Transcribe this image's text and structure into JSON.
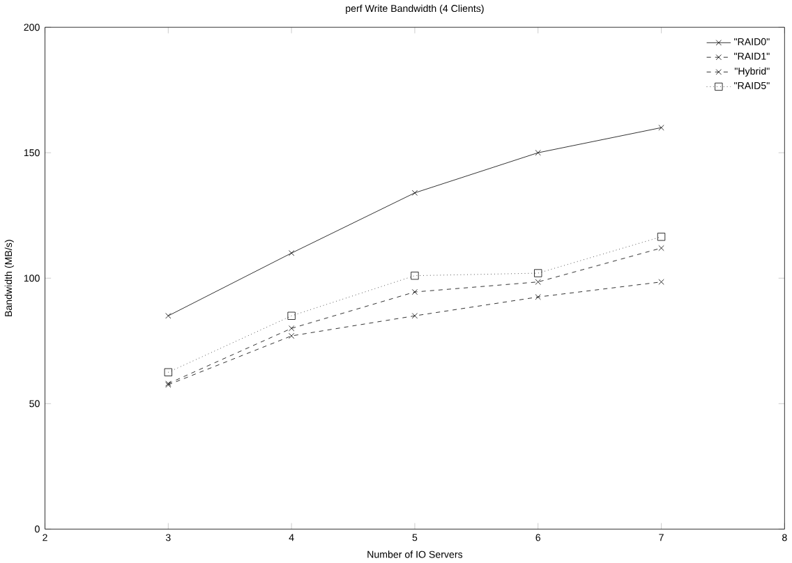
{
  "chart_data": {
    "type": "line",
    "title": "perf Write Bandwidth (4 Clients)",
    "xlabel": "Number of IO Servers",
    "ylabel": "Bandwidth (MB/s)",
    "xlim": [
      2,
      8
    ],
    "xticks": [
      2,
      3,
      4,
      5,
      6,
      7,
      8
    ],
    "ylim": [
      0,
      200
    ],
    "yticks": [
      0,
      50,
      100,
      150,
      200
    ],
    "legend": "top right",
    "grid": false,
    "series": [
      {
        "name": "\"RAID0\"",
        "color": "#000000",
        "marker": "cross",
        "line_style": "solid",
        "x": [
          3,
          4,
          5,
          6,
          7
        ],
        "values": [
          85,
          110,
          134,
          150,
          160
        ]
      },
      {
        "name": "\"RAID1\"",
        "color": "#000000",
        "marker": "cross",
        "line_style": "dashed",
        "x": [
          3,
          4,
          5,
          6,
          7
        ],
        "values": [
          57.5,
          77,
          85,
          92.5,
          98.5
        ]
      },
      {
        "name": "\"Hybrid\"",
        "color": "#000000",
        "marker": "cross",
        "line_style": "dashed",
        "x": [
          3,
          4,
          5,
          6,
          7
        ],
        "values": [
          58,
          80,
          94.5,
          98.5,
          112
        ]
      },
      {
        "name": "\"RAID5\"",
        "color": "#000000",
        "marker": "square",
        "line_style": "dotted",
        "x": [
          3,
          4,
          5,
          6,
          7
        ],
        "values": [
          62.5,
          85,
          101,
          102,
          116.5
        ]
      }
    ]
  }
}
